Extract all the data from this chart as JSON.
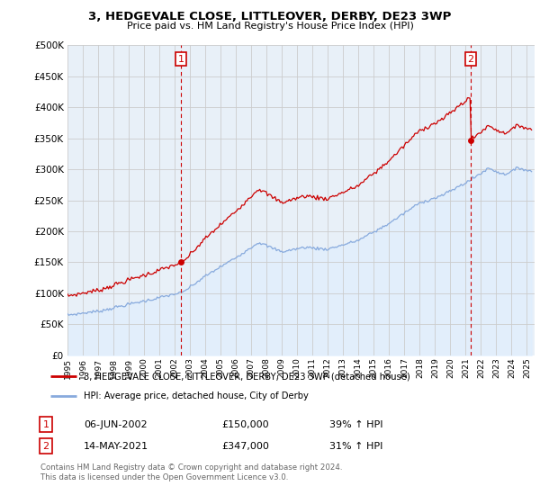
{
  "title": "3, HEDGEVALE CLOSE, LITTLEOVER, DERBY, DE23 3WP",
  "subtitle": "Price paid vs. HM Land Registry's House Price Index (HPI)",
  "legend_line1": "3, HEDGEVALE CLOSE, LITTLEOVER, DERBY, DE23 3WP (detached house)",
  "legend_line2": "HPI: Average price, detached house, City of Derby",
  "footer1": "Contains HM Land Registry data © Crown copyright and database right 2024.",
  "footer2": "This data is licensed under the Open Government Licence v3.0.",
  "point1_date": "06-JUN-2002",
  "point1_price": "£150,000",
  "point1_hpi": "39% ↑ HPI",
  "point2_date": "14-MAY-2021",
  "point2_price": "£347,000",
  "point2_hpi": "31% ↑ HPI",
  "ylim": [
    0,
    500000
  ],
  "yticks": [
    0,
    50000,
    100000,
    150000,
    200000,
    250000,
    300000,
    350000,
    400000,
    450000,
    500000
  ],
  "red_color": "#cc0000",
  "blue_color": "#88aadd",
  "blue_fill": "#ddeeff",
  "marker_color": "#cc0000",
  "vline_color": "#cc0000",
  "grid_color": "#cccccc",
  "chart_bg": "#e8f0f8"
}
